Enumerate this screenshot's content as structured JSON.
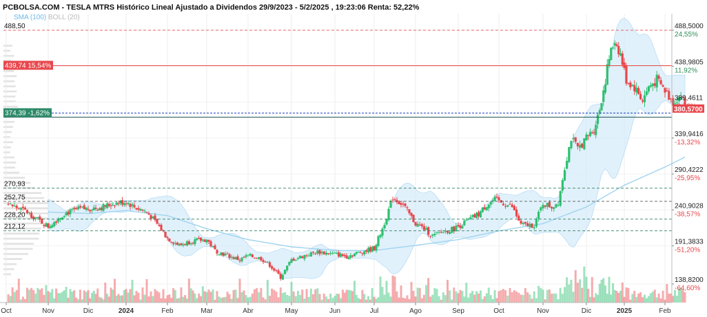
{
  "header": {
    "title": "PCBOLSA.COM - TESLA MTRS Histórico Lineal Ajustado a Dividendos 29/9/2023 - 5/2/2025 , 19:23:06 Renta: 52,22%",
    "indicators": [
      "SMA (100)",
      "BOLL (20)"
    ]
  },
  "colors": {
    "up": "#2fbf71",
    "down": "#e8474c",
    "sma": "#9fd3f0",
    "boll_fill": "#d7ecfa",
    "boll_line": "#b7dcf5",
    "resistance": "#e8474c",
    "support_dash": "#2e7d5b",
    "current": "#1f3fbf",
    "volume_profile": "#dcdcdc"
  },
  "chart_data": {
    "type": "candlestick",
    "title": "PCBOLSA.COM - TESLA MTRS Histórico Lineal Ajustado a Dividendos 29/9/2023 - 5/2/2025 , 19:23:06 Renta: 52,22%",
    "ylim": [
      135,
      505
    ],
    "y_ticks": [
      "488,5000",
      "438,9805",
      "389,4611",
      "339,9416",
      "290,4222",
      "240,9028",
      "191,3833",
      "138,8200"
    ],
    "y_tick_values": [
      488.5,
      438.98,
      389.46,
      339.94,
      290.42,
      240.9,
      191.38,
      138.82
    ],
    "pct_ticks": [
      "24,55%",
      "11,92%",
      "-0,70%",
      "-13,32%",
      "-25,95%",
      "-38,57%",
      "-51,20%",
      "-64,60%"
    ],
    "pct_values": [
      24.55,
      11.92,
      -0.7,
      -13.32,
      -25.95,
      -38.57,
      -51.2,
      -64.6
    ],
    "x_labels": [
      "Oct",
      "Nov",
      "Dic",
      "2024",
      "Feb",
      "Mar",
      "Abr",
      "May",
      "Jun",
      "Jul",
      "Ago",
      "Sep",
      "Oct",
      "Nov",
      "Dic",
      "2025",
      "Feb"
    ],
    "left_levels": [
      {
        "label": "488,50",
        "value": 488.5
      },
      {
        "label": "270,93",
        "value": 270.93
      },
      {
        "label": "252,75",
        "value": 252.75
      },
      {
        "label": "228,20",
        "value": 228.2
      },
      {
        "label": "212,12",
        "value": 212.12
      }
    ],
    "resistance": {
      "label": "439,74 15,54%",
      "value": 439.74
    },
    "current_level": {
      "label": "374,39 -1,62%",
      "value": 374.39
    },
    "last_price": {
      "label": "380,5700",
      "value": 380.57
    },
    "close_path": [
      {
        "m": 0,
        "v": 250
      },
      {
        "m": 0.5,
        "v": 238
      },
      {
        "m": 1,
        "v": 218
      },
      {
        "m": 1.4,
        "v": 236
      },
      {
        "m": 1.8,
        "v": 242
      },
      {
        "m": 2.3,
        "v": 244
      },
      {
        "m": 2.7,
        "v": 250
      },
      {
        "m": 3,
        "v": 252
      },
      {
        "m": 3.2,
        "v": 245
      },
      {
        "m": 3.5,
        "v": 238
      },
      {
        "m": 3.8,
        "v": 218
      },
      {
        "m": 4,
        "v": 202
      },
      {
        "m": 4.3,
        "v": 192
      },
      {
        "m": 4.6,
        "v": 198
      },
      {
        "m": 5,
        "v": 200
      },
      {
        "m": 5.2,
        "v": 185
      },
      {
        "m": 5.5,
        "v": 178
      },
      {
        "m": 5.8,
        "v": 172
      },
      {
        "m": 6,
        "v": 178
      },
      {
        "m": 6.3,
        "v": 174
      },
      {
        "m": 6.5,
        "v": 165
      },
      {
        "m": 6.75,
        "v": 148
      },
      {
        "m": 7,
        "v": 172
      },
      {
        "m": 7.3,
        "v": 178
      },
      {
        "m": 7.6,
        "v": 183
      },
      {
        "m": 8,
        "v": 180
      },
      {
        "m": 8.3,
        "v": 177
      },
      {
        "m": 8.6,
        "v": 182
      },
      {
        "m": 9,
        "v": 188
      },
      {
        "m": 9.2,
        "v": 215
      },
      {
        "m": 9.45,
        "v": 258
      },
      {
        "m": 9.7,
        "v": 248
      },
      {
        "m": 10,
        "v": 222
      },
      {
        "m": 10.2,
        "v": 215
      },
      {
        "m": 10.4,
        "v": 205
      },
      {
        "m": 10.6,
        "v": 210
      },
      {
        "m": 10.9,
        "v": 215
      },
      {
        "m": 11.2,
        "v": 225
      },
      {
        "m": 11.5,
        "v": 235
      },
      {
        "m": 11.7,
        "v": 248
      },
      {
        "m": 11.9,
        "v": 255
      },
      {
        "m": 12.1,
        "v": 250
      },
      {
        "m": 12.3,
        "v": 245
      },
      {
        "m": 12.5,
        "v": 220
      },
      {
        "m": 12.8,
        "v": 220
      },
      {
        "m": 13,
        "v": 250
      },
      {
        "m": 13.2,
        "v": 245
      },
      {
        "m": 13.35,
        "v": 252
      },
      {
        "m": 13.5,
        "v": 300
      },
      {
        "m": 13.65,
        "v": 340
      },
      {
        "m": 13.8,
        "v": 325
      },
      {
        "m": 14,
        "v": 340
      },
      {
        "m": 14.2,
        "v": 352
      },
      {
        "m": 14.35,
        "v": 380
      },
      {
        "m": 14.5,
        "v": 420
      },
      {
        "m": 14.6,
        "v": 450
      },
      {
        "m": 14.75,
        "v": 475
      },
      {
        "m": 14.9,
        "v": 455
      },
      {
        "m": 15.05,
        "v": 420
      },
      {
        "m": 15.25,
        "v": 410
      },
      {
        "m": 15.45,
        "v": 392
      },
      {
        "m": 15.6,
        "v": 410
      },
      {
        "m": 15.8,
        "v": 420
      },
      {
        "m": 16,
        "v": 405
      },
      {
        "m": 16.2,
        "v": 390
      },
      {
        "m": 16.4,
        "v": 398
      },
      {
        "m": 16.55,
        "v": 380
      }
    ],
    "sma_path": [
      {
        "m": 1,
        "v": 238
      },
      {
        "m": 2,
        "v": 236
      },
      {
        "m": 3,
        "v": 240
      },
      {
        "m": 4,
        "v": 233
      },
      {
        "m": 5,
        "v": 215
      },
      {
        "m": 6,
        "v": 200
      },
      {
        "m": 7,
        "v": 190
      },
      {
        "m": 8,
        "v": 185
      },
      {
        "m": 9,
        "v": 185
      },
      {
        "m": 10,
        "v": 192
      },
      {
        "m": 11,
        "v": 200
      },
      {
        "m": 12,
        "v": 212
      },
      {
        "m": 13,
        "v": 222
      },
      {
        "m": 14,
        "v": 245
      },
      {
        "m": 15,
        "v": 275
      },
      {
        "m": 16,
        "v": 300
      },
      {
        "m": 16.55,
        "v": 315
      }
    ]
  }
}
